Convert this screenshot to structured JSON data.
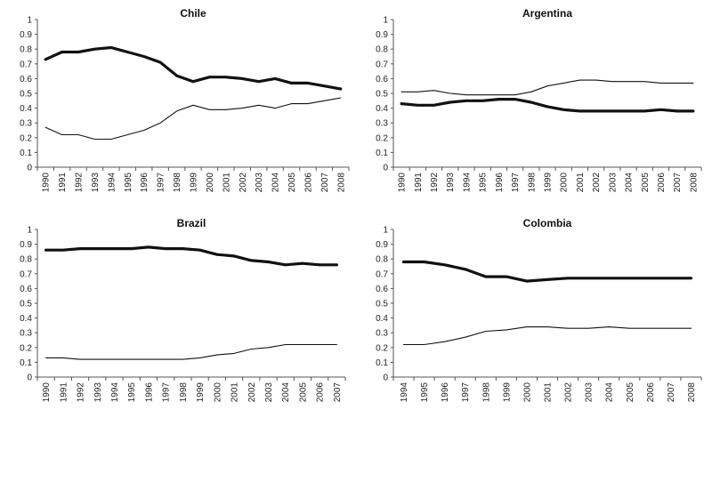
{
  "chart_data": [
    {
      "type": "line",
      "title": "Chile",
      "xlabel": "",
      "ylabel": "",
      "x": [
        "1990",
        "1991",
        "1992",
        "1993",
        "1994",
        "1995",
        "1996",
        "1997",
        "1998",
        "1999",
        "2000",
        "2001",
        "2002",
        "2003",
        "2004",
        "2005",
        "2006",
        "2007",
        "2008"
      ],
      "ylim": [
        0,
        1
      ],
      "yticks": [
        "0",
        "0.1",
        "0.2",
        "0.3",
        "0.4",
        "0.5",
        "0.6",
        "0.7",
        "0.8",
        "0.9",
        "1"
      ],
      "series": [
        {
          "style": "thick",
          "values": [
            0.73,
            0.78,
            0.78,
            0.8,
            0.81,
            0.78,
            0.75,
            0.71,
            0.62,
            0.58,
            0.61,
            0.61,
            0.6,
            0.58,
            0.6,
            0.57,
            0.57,
            0.55,
            0.53
          ]
        },
        {
          "style": "thin",
          "values": [
            0.27,
            0.22,
            0.22,
            0.19,
            0.19,
            0.22,
            0.25,
            0.3,
            0.38,
            0.42,
            0.39,
            0.39,
            0.4,
            0.42,
            0.4,
            0.43,
            0.43,
            0.45,
            0.47
          ]
        }
      ]
    },
    {
      "type": "line",
      "title": "Argentina",
      "xlabel": "",
      "ylabel": "",
      "x": [
        "1990",
        "1991",
        "1992",
        "1993",
        "1994",
        "1995",
        "1996",
        "1997",
        "1998",
        "1999",
        "2000",
        "2001",
        "2002",
        "2003",
        "2004",
        "2005",
        "2006",
        "2007",
        "2008"
      ],
      "ylim": [
        0,
        1
      ],
      "yticks": [
        "0",
        "0.1",
        "0.2",
        "0.3",
        "0.4",
        "0.5",
        "0.6",
        "0.7",
        "0.8",
        "0.9",
        "1"
      ],
      "series": [
        {
          "style": "thin",
          "values": [
            0.51,
            0.51,
            0.52,
            0.5,
            0.49,
            0.49,
            0.49,
            0.49,
            0.51,
            0.55,
            0.57,
            0.59,
            0.59,
            0.58,
            0.58,
            0.58,
            0.57,
            0.57,
            0.57
          ]
        },
        {
          "style": "thick",
          "values": [
            0.43,
            0.42,
            0.42,
            0.44,
            0.45,
            0.45,
            0.46,
            0.46,
            0.44,
            0.41,
            0.39,
            0.38,
            0.38,
            0.38,
            0.38,
            0.38,
            0.39,
            0.38,
            0.38
          ]
        }
      ]
    },
    {
      "type": "line",
      "title": "Brazil",
      "xlabel": "",
      "ylabel": "",
      "x": [
        "1990",
        "1991",
        "1992",
        "1993",
        "1994",
        "1995",
        "1996",
        "1997",
        "1998",
        "1999",
        "2000",
        "2001",
        "2002",
        "2003",
        "2004",
        "2005",
        "2006",
        "2007"
      ],
      "ylim": [
        0,
        1
      ],
      "yticks": [
        "0",
        "0.1",
        "0.2",
        "0.3",
        "0.4",
        "0.5",
        "0.6",
        "0.7",
        "0.8",
        "0.9",
        "1"
      ],
      "series": [
        {
          "style": "thick",
          "values": [
            0.86,
            0.86,
            0.87,
            0.87,
            0.87,
            0.87,
            0.88,
            0.87,
            0.87,
            0.86,
            0.83,
            0.82,
            0.79,
            0.78,
            0.76,
            0.77,
            0.76,
            0.76
          ]
        },
        {
          "style": "thin",
          "values": [
            0.13,
            0.13,
            0.12,
            0.12,
            0.12,
            0.12,
            0.12,
            0.12,
            0.12,
            0.13,
            0.15,
            0.16,
            0.19,
            0.2,
            0.22,
            0.22,
            0.22,
            0.22
          ]
        }
      ]
    },
    {
      "type": "line",
      "title": "Colombia",
      "xlabel": "",
      "ylabel": "",
      "x": [
        "1994",
        "1995",
        "1996",
        "1997",
        "1998",
        "1999",
        "2000",
        "2001",
        "2002",
        "2003",
        "2004",
        "2005",
        "2006",
        "2007",
        "2008"
      ],
      "ylim": [
        0,
        1
      ],
      "yticks": [
        "0",
        "0.1",
        "0.2",
        "0.3",
        "0.4",
        "0.5",
        "0.6",
        "0.7",
        "0.8",
        "0.9",
        "1"
      ],
      "series": [
        {
          "style": "thick",
          "values": [
            0.78,
            0.78,
            0.76,
            0.73,
            0.68,
            0.68,
            0.65,
            0.66,
            0.67,
            0.67,
            0.67,
            0.67,
            0.67,
            0.67,
            0.67
          ]
        },
        {
          "style": "thin",
          "values": [
            0.22,
            0.22,
            0.24,
            0.27,
            0.31,
            0.32,
            0.34,
            0.34,
            0.33,
            0.33,
            0.34,
            0.33,
            0.33,
            0.33,
            0.33
          ]
        }
      ]
    }
  ]
}
